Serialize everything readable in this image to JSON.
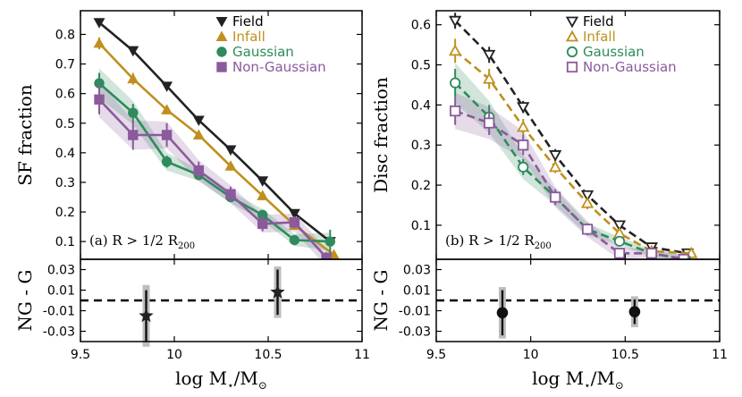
{
  "chart_data": [
    {
      "type": "line",
      "panel": "left-top",
      "annotation": "(a)  R > 1/2 R",
      "annotation_sub": "200",
      "ylabel": "SF fraction",
      "xlim": [
        9.5,
        11.0
      ],
      "ylim": [
        0.04,
        0.88
      ],
      "yticks": [
        "0.1",
        "0.2",
        "0.3",
        "0.4",
        "0.5",
        "0.6",
        "0.7",
        "0.8"
      ],
      "legend_loc": "top-right",
      "series": [
        {
          "name": "Field",
          "color": "#222222",
          "marker": "tri-down",
          "filled": true,
          "dashed": false,
          "x": [
            9.6,
            9.78,
            9.96,
            10.13,
            10.3,
            10.47,
            10.64,
            10.83
          ],
          "y": [
            0.84,
            0.745,
            0.625,
            0.51,
            0.41,
            0.305,
            0.195,
            0.1
          ],
          "err": [
            0.01,
            0.01,
            0.01,
            0.01,
            0.01,
            0.01,
            0.01,
            0.01
          ]
        },
        {
          "name": "Infall",
          "color": "#c08f1d",
          "marker": "tri-up",
          "filled": true,
          "dashed": false,
          "x": [
            9.6,
            9.78,
            9.96,
            10.13,
            10.3,
            10.47,
            10.64,
            10.85
          ],
          "y": [
            0.77,
            0.65,
            0.545,
            0.46,
            0.355,
            0.255,
            0.155,
            0.055
          ],
          "err": [
            0.02,
            0.02,
            0.015,
            0.015,
            0.015,
            0.015,
            0.015,
            0.015
          ]
        },
        {
          "name": "Gaussian",
          "color": "#2f8a5c",
          "marker": "circle",
          "filled": true,
          "dashed": false,
          "x": [
            9.6,
            9.78,
            9.96,
            10.13,
            10.3,
            10.47,
            10.64,
            10.83
          ],
          "y": [
            0.635,
            0.535,
            0.37,
            0.325,
            0.25,
            0.19,
            0.105,
            0.1
          ],
          "err": [
            0.035,
            0.03,
            0.02,
            0.015,
            0.015,
            0.015,
            0.015,
            0.04
          ],
          "band": [
            0.05,
            0.04,
            0.03,
            0.02,
            0.02,
            0.02,
            0.02,
            0.03
          ]
        },
        {
          "name": "Non-Gaussian",
          "color": "#8a5a9c",
          "marker": "square",
          "filled": true,
          "dashed": false,
          "x": [
            9.6,
            9.78,
            9.96,
            10.13,
            10.3,
            10.47,
            10.64,
            10.81
          ],
          "y": [
            0.58,
            0.46,
            0.46,
            0.34,
            0.26,
            0.16,
            0.165,
            0.045
          ],
          "err": [
            0.05,
            0.05,
            0.04,
            0.03,
            0.025,
            0.025,
            0.02,
            0.02
          ],
          "band": [
            0.06,
            0.05,
            0.045,
            0.035,
            0.03,
            0.03,
            0.03,
            0.03
          ]
        }
      ]
    },
    {
      "type": "line",
      "panel": "right-top",
      "annotation": "(b)  R > 1/2 R",
      "annotation_sub": "200",
      "ylabel": "Disc fraction",
      "xlim": [
        9.5,
        11.0
      ],
      "ylim": [
        0.015,
        0.635
      ],
      "yticks": [
        "0.1",
        "0.2",
        "0.3",
        "0.4",
        "0.5",
        "0.6"
      ],
      "legend_loc": "top-right",
      "series": [
        {
          "name": "Field",
          "color": "#222222",
          "marker": "tri-down",
          "filled": false,
          "dashed": true,
          "x": [
            9.6,
            9.78,
            9.96,
            10.13,
            10.3,
            10.47,
            10.64,
            10.83
          ],
          "y": [
            0.61,
            0.525,
            0.395,
            0.275,
            0.175,
            0.1,
            0.045,
            0.03
          ],
          "err": [
            0.02,
            0.02,
            0.015,
            0.015,
            0.01,
            0.01,
            0.01,
            0.01
          ]
        },
        {
          "name": "Infall",
          "color": "#c08f1d",
          "marker": "tri-up",
          "filled": false,
          "dashed": true,
          "x": [
            9.6,
            9.78,
            9.96,
            10.13,
            10.3,
            10.47,
            10.64,
            10.85
          ],
          "y": [
            0.535,
            0.465,
            0.345,
            0.245,
            0.155,
            0.08,
            0.035,
            0.03
          ],
          "err": [
            0.03,
            0.025,
            0.02,
            0.015,
            0.015,
            0.01,
            0.01,
            0.01
          ]
        },
        {
          "name": "Gaussian",
          "color": "#2f8a5c",
          "marker": "circle",
          "filled": false,
          "dashed": true,
          "x": [
            9.6,
            9.78,
            9.96,
            10.13,
            10.3,
            10.47,
            10.64,
            10.82
          ],
          "y": [
            0.455,
            0.37,
            0.245,
            0.17,
            0.09,
            0.06,
            0.03,
            0.015
          ],
          "err": [
            0.035,
            0.03,
            0.02,
            0.015,
            0.01,
            0.01,
            0.01,
            0.01
          ],
          "band": [
            0.05,
            0.04,
            0.03,
            0.02,
            0.015,
            0.01,
            0.01,
            0.01
          ]
        },
        {
          "name": "Non-Gaussian",
          "color": "#8a5a9c",
          "marker": "square",
          "filled": false,
          "dashed": true,
          "x": [
            9.6,
            9.78,
            9.96,
            10.13,
            10.3,
            10.47,
            10.64,
            10.81
          ],
          "y": [
            0.385,
            0.355,
            0.3,
            0.17,
            0.09,
            0.03,
            0.03,
            0.015
          ],
          "err": [
            0.035,
            0.03,
            0.025,
            0.02,
            0.015,
            0.01,
            0.01,
            0.01
          ],
          "band": [
            0.045,
            0.04,
            0.035,
            0.025,
            0.02,
            0.015,
            0.01,
            0.01
          ]
        }
      ]
    },
    {
      "type": "scatter",
      "panel": "left-bottom",
      "ylabel": "NG - G",
      "xlabel": "log M",
      "xlabel_sub": "⋆",
      "xlabel_rest": "/M",
      "xlabel_sub2": "⊙",
      "xlim": [
        9.5,
        11.0
      ],
      "ylim": [
        -0.04,
        0.04
      ],
      "xticks": [
        "9.5",
        "10",
        "10.5",
        "11"
      ],
      "yticks": [
        "0.03",
        "0.01",
        "-0.01",
        "-0.03"
      ],
      "reference_line": 0.0,
      "marker": "star",
      "points": [
        {
          "x": 9.85,
          "y": -0.015,
          "err": 0.025,
          "err2": 0.03
        },
        {
          "x": 10.55,
          "y": 0.008,
          "err": 0.022,
          "err2": 0.025
        }
      ]
    },
    {
      "type": "scatter",
      "panel": "right-bottom",
      "ylabel": "NG - G",
      "xlabel": "log M",
      "xlabel_sub": "⋆",
      "xlabel_rest": "/M",
      "xlabel_sub2": "⊙",
      "xlim": [
        9.5,
        11.0
      ],
      "ylim": [
        -0.04,
        0.04
      ],
      "xticks": [
        "9.5",
        "10",
        "10.5",
        "11"
      ],
      "yticks": [
        "0.03",
        "0.01",
        "-0.01",
        "-0.03"
      ],
      "reference_line": 0.0,
      "marker": "circle",
      "points": [
        {
          "x": 9.85,
          "y": -0.012,
          "err": 0.022,
          "err2": 0.025
        },
        {
          "x": 10.55,
          "y": -0.011,
          "err": 0.012,
          "err2": 0.015
        }
      ]
    }
  ]
}
